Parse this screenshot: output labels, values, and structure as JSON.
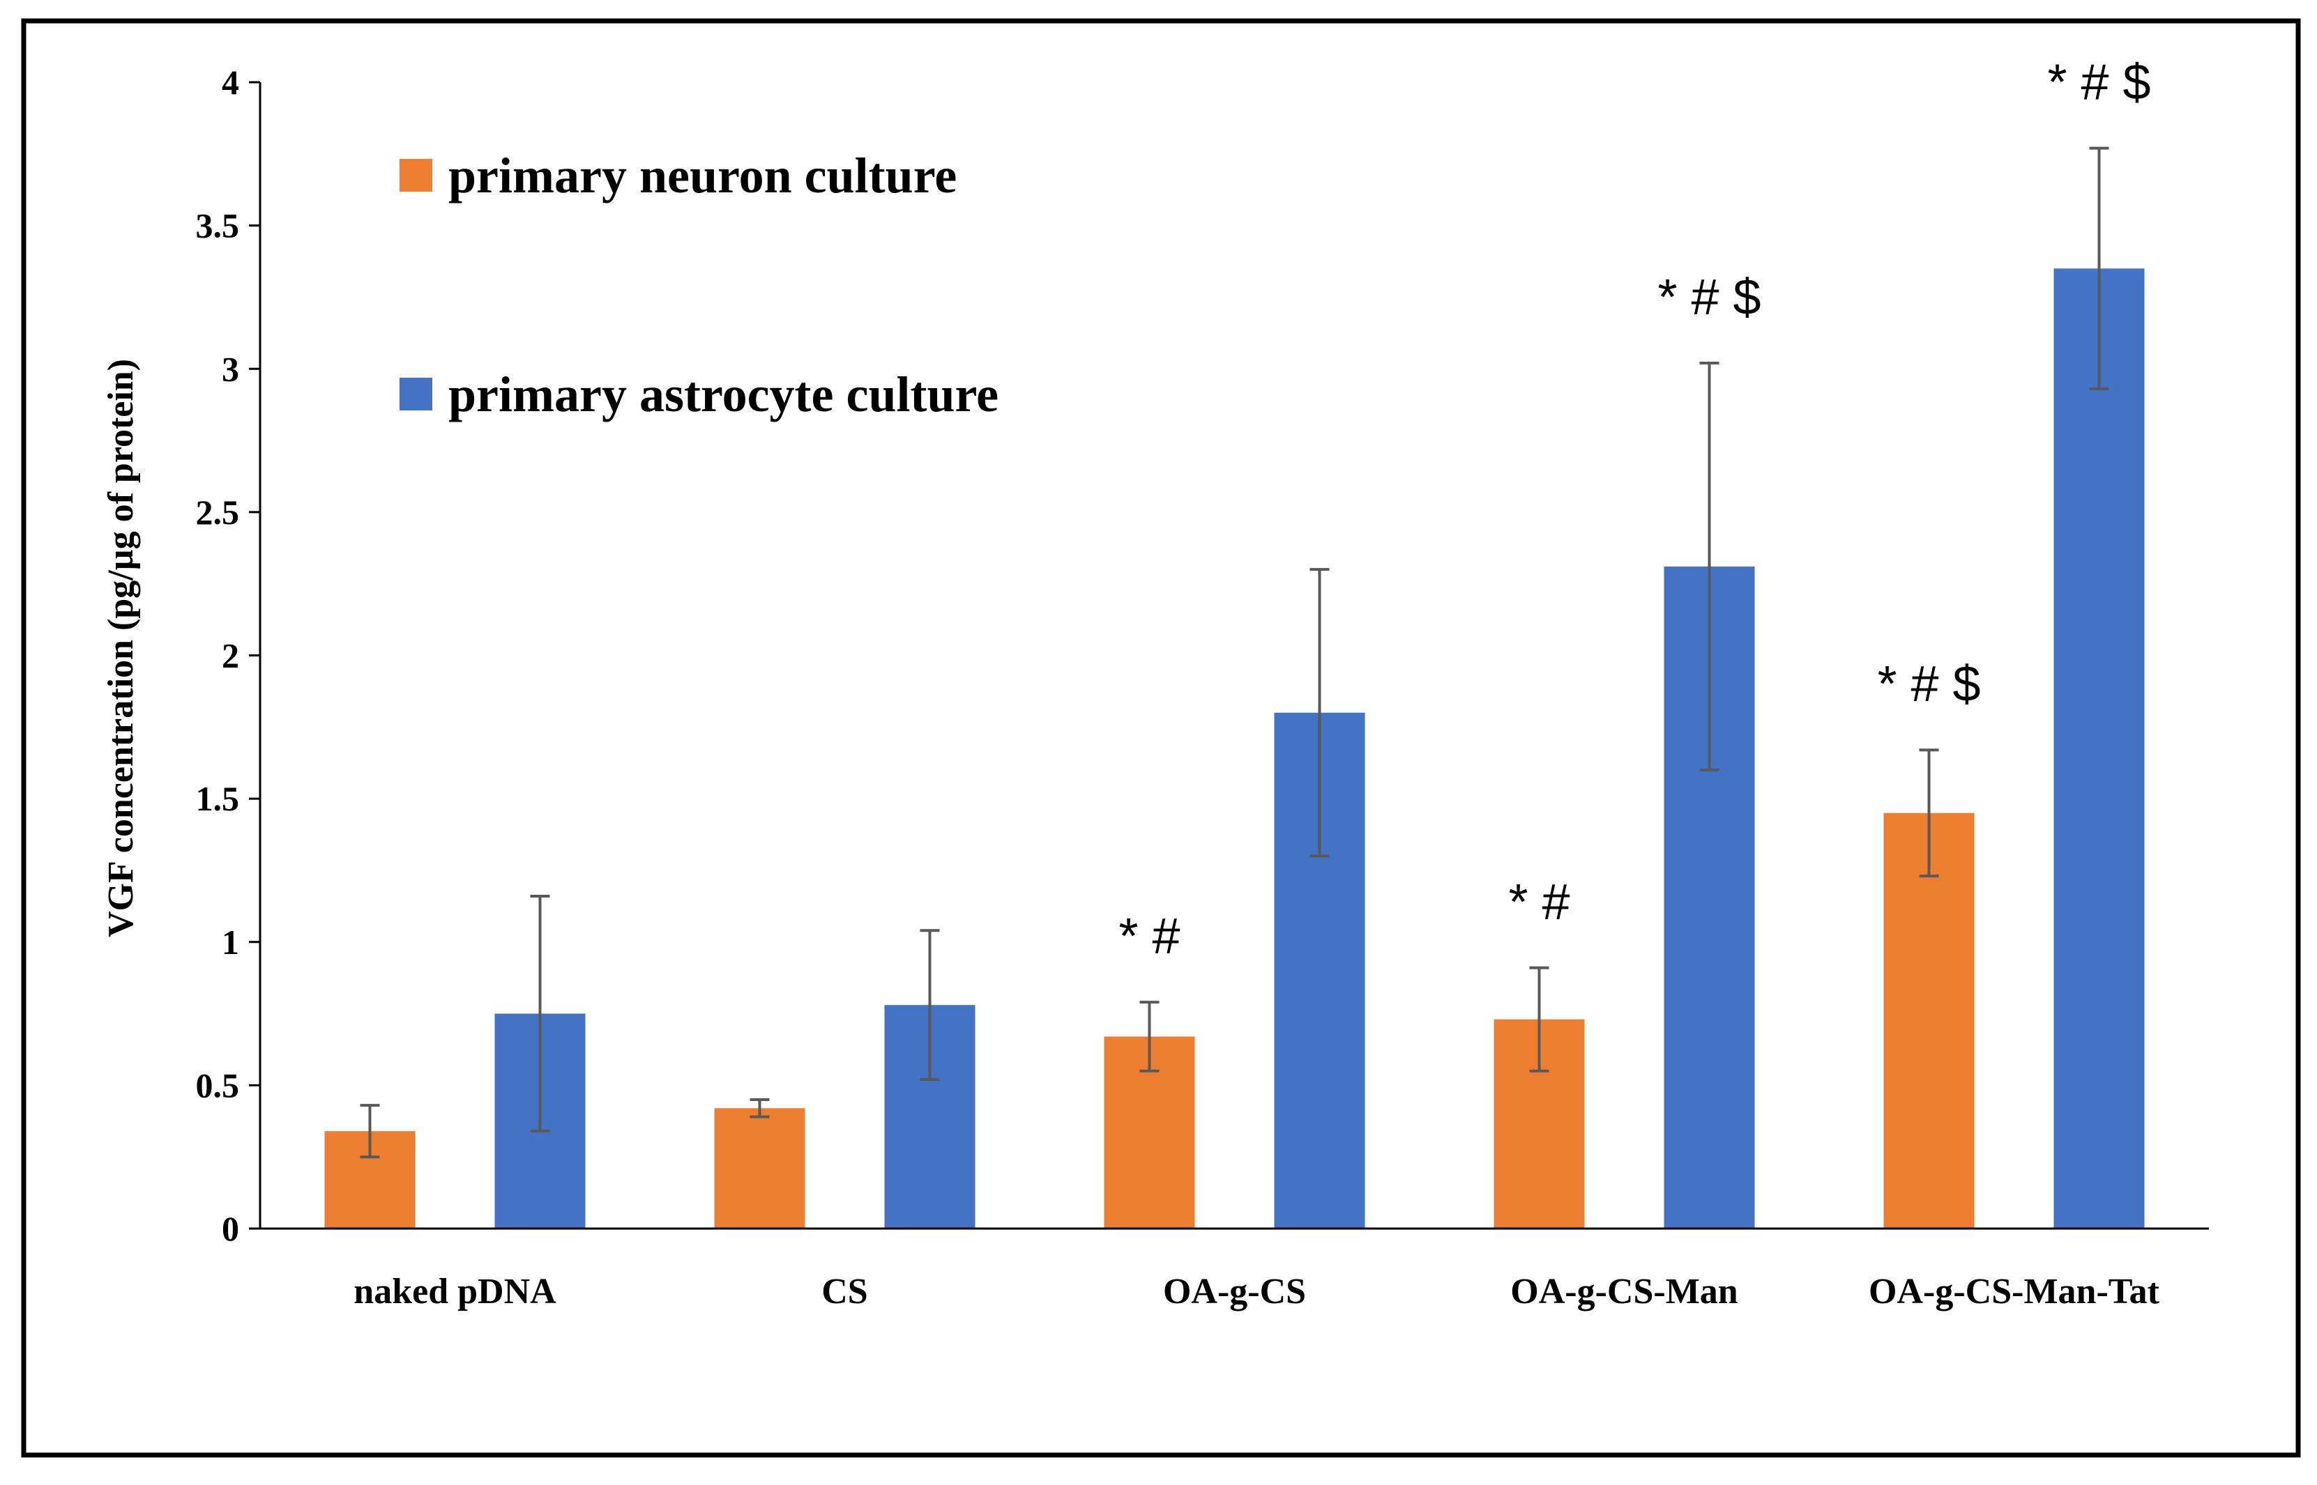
{
  "colors": {
    "neuron": "#ED7D31",
    "astrocyte": "#4472C4",
    "axis": "#000000",
    "error_bar": "#595959",
    "frame": "#000000"
  },
  "chart_data": {
    "type": "bar",
    "title": "",
    "xlabel": "",
    "ylabel": "VGF concentration (pg/µg of protein)",
    "ylim": [
      0,
      4
    ],
    "yticks": [
      "0",
      "0.5",
      "1",
      "1.5",
      "2",
      "2.5",
      "3",
      "3.5",
      "4"
    ],
    "grid": false,
    "legend_position": "top-left",
    "categories": [
      "naked pDNA",
      "CS",
      "OA-g-CS",
      "OA-g-CS-Man",
      "OA-g-CS-Man-Tat"
    ],
    "series": [
      {
        "name": "primary neuron culture",
        "color_key": "neuron",
        "values": [
          0.34,
          0.42,
          0.67,
          0.73,
          1.45
        ],
        "errors": [
          0.09,
          0.03,
          0.12,
          0.18,
          0.22
        ],
        "annotations": [
          "",
          "",
          "* #",
          "* #",
          "* # $"
        ]
      },
      {
        "name": "primary astrocyte culture",
        "color_key": "astrocyte",
        "values": [
          0.75,
          0.78,
          1.8,
          2.31,
          3.35
        ],
        "errors": [
          0.41,
          0.26,
          0.5,
          0.71,
          0.42
        ],
        "annotations": [
          "",
          "",
          "",
          "* # $",
          "* # $"
        ]
      }
    ]
  }
}
